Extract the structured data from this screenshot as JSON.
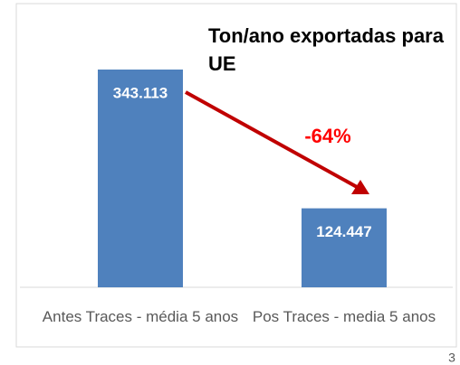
{
  "chart_data": {
    "type": "bar",
    "title": "Ton/ano exportadas para UE",
    "categories": [
      "Antes Traces - média 5 anos",
      "Pos Traces - media 5 anos"
    ],
    "values": [
      343113,
      124447
    ],
    "value_labels": [
      "343.113",
      "124.447"
    ],
    "color": "#4f81bd",
    "ylim": [
      0,
      400000
    ],
    "annotations": [
      "-64%"
    ],
    "page_number": "3"
  }
}
